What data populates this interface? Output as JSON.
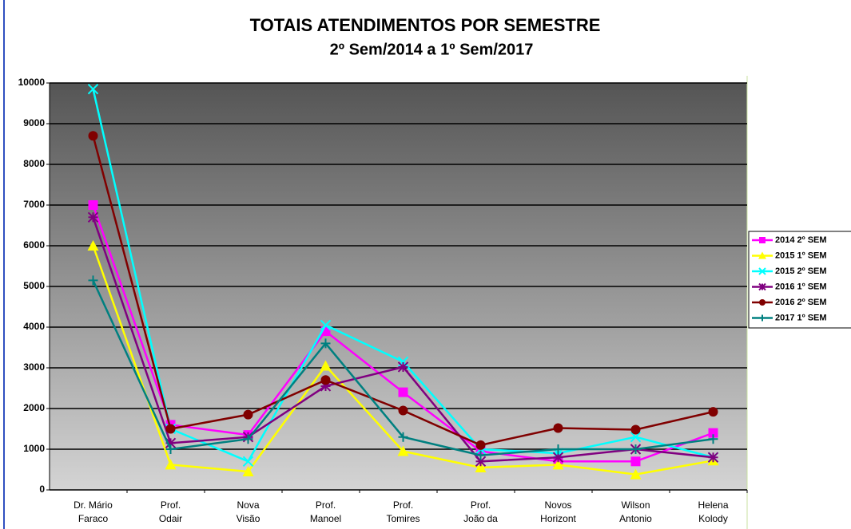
{
  "chart_data": {
    "type": "line",
    "title": "TOTAIS ATENDIMENTOS POR SEMESTRE",
    "subtitle": "2º Sem/2014 a 1º Sem/2017",
    "categories": [
      [
        "Dr. Mário",
        "Faraco"
      ],
      [
        "Prof.",
        "Odair"
      ],
      [
        "Nova",
        "Visão"
      ],
      [
        "Prof.",
        "Manoel"
      ],
      [
        "Prof.",
        "Tomires"
      ],
      [
        "Prof.",
        "João da"
      ],
      [
        "Novos",
        "Horizont"
      ],
      [
        "Wilson",
        "Antonio"
      ],
      [
        "Helena",
        "Kolody"
      ]
    ],
    "series": [
      {
        "name": "2014 2º SEM",
        "color": "#ff00ff",
        "marker": "square",
        "values": [
          7000,
          1600,
          1350,
          3900,
          2400,
          950,
          700,
          700,
          1400
        ]
      },
      {
        "name": "2015 1º SEM",
        "color": "#ffff00",
        "marker": "triangle",
        "values": [
          6000,
          620,
          450,
          3050,
          950,
          550,
          620,
          380,
          720
        ]
      },
      {
        "name": "2015 2º SEM",
        "color": "#00ffff",
        "marker": "x",
        "values": [
          9850,
          1500,
          700,
          4050,
          3150,
          1000,
          900,
          1300,
          800
        ]
      },
      {
        "name": "2016 1º SEM",
        "color": "#800080",
        "marker": "star",
        "values": [
          6700,
          1150,
          1300,
          2550,
          3020,
          700,
          800,
          1000,
          800
        ]
      },
      {
        "name": "2016 2º SEM",
        "color": "#800000",
        "marker": "circle",
        "values": [
          8700,
          1500,
          1850,
          2700,
          1950,
          1100,
          1520,
          1480,
          1920
        ]
      },
      {
        "name": "2017 1º SEM",
        "color": "#008080",
        "marker": "plus",
        "values": [
          5150,
          1000,
          1250,
          3600,
          1300,
          850,
          1000,
          1000,
          1250
        ]
      }
    ],
    "ylim": [
      0,
      10000
    ],
    "yticks": [
      0,
      1000,
      2000,
      3000,
      4000,
      5000,
      6000,
      7000,
      8000,
      9000,
      10000
    ],
    "grid": true,
    "legend": "right"
  }
}
